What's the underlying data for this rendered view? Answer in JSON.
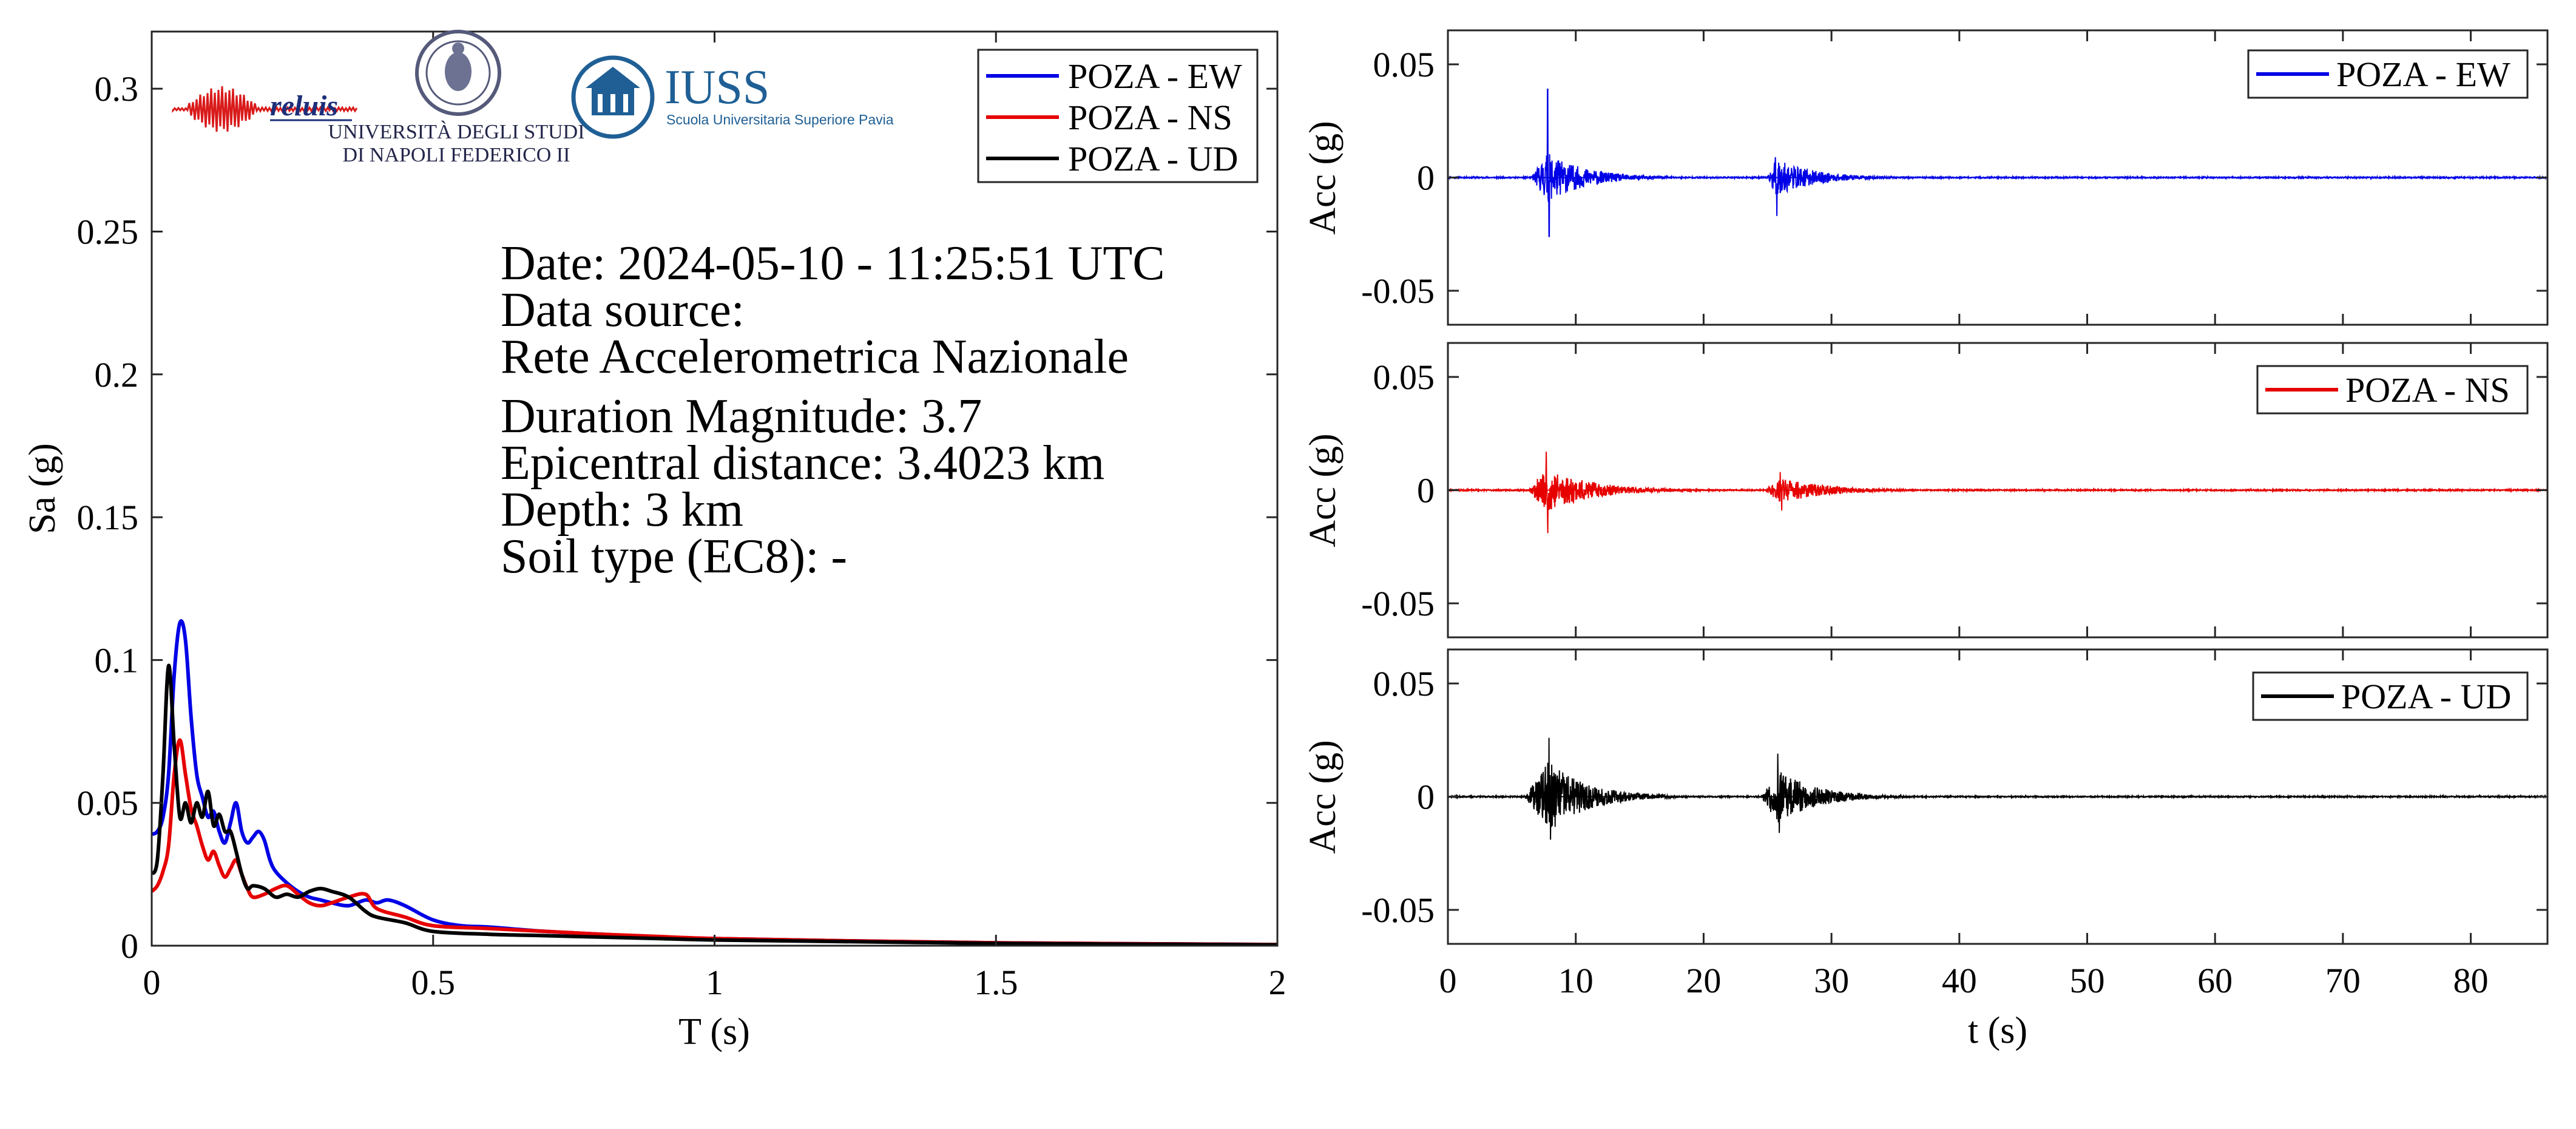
{
  "info": {
    "date": "Date: 2024-05-10 - 11:25:51 UTC",
    "source_label": "Data source:",
    "source_name": "Rete Accelerometrica Nazionale",
    "magnitude": "Duration Magnitude: 3.7",
    "distance": "Epicentral distance: 3.4023 km",
    "depth": "Depth: 3 km",
    "soil": "Soil type (EC8): -"
  },
  "logos": {
    "reluis": "reluis",
    "unina_line1": "UNIVERSITÀ DEGLI STUDI",
    "unina_line2": "DI NAPOLI FEDERICO II",
    "iuss_title": "IUSS",
    "iuss_subtitle": "Scuola Universitaria Superiore Pavia"
  },
  "colors": {
    "ew": "#0000e6",
    "ns": "#e60000",
    "ud": "#000000"
  },
  "chart_data": [
    {
      "type": "line",
      "xlabel": "T (s)",
      "ylabel": "Sa (g)",
      "xlim": [
        0,
        2
      ],
      "ylim": [
        0,
        0.32
      ],
      "xticks": [
        0,
        0.5,
        1,
        1.5,
        2
      ],
      "xtick_labels": [
        "0",
        "0.5",
        "1",
        "1.5",
        "2"
      ],
      "yticks": [
        0,
        0.05,
        0.1,
        0.15,
        0.2,
        0.25,
        0.3
      ],
      "ytick_labels": [
        "0",
        "0.05",
        "0.1",
        "0.15",
        "0.2",
        "0.25",
        "0.3"
      ],
      "grid": false,
      "legend": "top-right",
      "series": [
        {
          "name": "POZA - EW",
          "color": "#0000e6",
          "x": [
            0,
            0.01,
            0.02,
            0.03,
            0.04,
            0.05,
            0.06,
            0.07,
            0.08,
            0.09,
            0.1,
            0.11,
            0.12,
            0.13,
            0.14,
            0.15,
            0.16,
            0.17,
            0.18,
            0.19,
            0.2,
            0.21,
            0.22,
            0.24,
            0.26,
            0.28,
            0.3,
            0.32,
            0.35,
            0.38,
            0.4,
            0.42,
            0.45,
            0.5,
            0.55,
            0.6,
            0.7,
            0.8,
            0.9,
            1.0,
            1.2,
            1.5,
            2.0
          ],
          "y": [
            0.039,
            0.04,
            0.045,
            0.06,
            0.095,
            0.113,
            0.107,
            0.08,
            0.06,
            0.052,
            0.045,
            0.047,
            0.04,
            0.036,
            0.043,
            0.05,
            0.04,
            0.036,
            0.038,
            0.04,
            0.037,
            0.03,
            0.026,
            0.022,
            0.019,
            0.017,
            0.016,
            0.015,
            0.014,
            0.016,
            0.015,
            0.016,
            0.014,
            0.009,
            0.007,
            0.0065,
            0.005,
            0.004,
            0.003,
            0.0025,
            0.0018,
            0.001,
            0.0004
          ]
        },
        {
          "name": "POZA - NS",
          "color": "#e60000",
          "x": [
            0,
            0.01,
            0.02,
            0.03,
            0.04,
            0.05,
            0.06,
            0.07,
            0.08,
            0.09,
            0.1,
            0.11,
            0.12,
            0.13,
            0.14,
            0.15,
            0.16,
            0.17,
            0.18,
            0.2,
            0.22,
            0.24,
            0.26,
            0.28,
            0.3,
            0.32,
            0.35,
            0.38,
            0.4,
            0.45,
            0.5,
            0.6,
            0.7,
            0.8,
            0.9,
            1.0,
            1.2,
            1.5,
            2.0
          ],
          "y": [
            0.019,
            0.021,
            0.026,
            0.035,
            0.06,
            0.072,
            0.06,
            0.048,
            0.042,
            0.035,
            0.03,
            0.033,
            0.028,
            0.024,
            0.027,
            0.03,
            0.025,
            0.02,
            0.017,
            0.018,
            0.02,
            0.021,
            0.018,
            0.015,
            0.014,
            0.015,
            0.017,
            0.018,
            0.013,
            0.01,
            0.007,
            0.006,
            0.005,
            0.004,
            0.0032,
            0.0025,
            0.0018,
            0.001,
            0.0004
          ]
        },
        {
          "name": "POZA - UD",
          "color": "#000000",
          "x": [
            0,
            0.01,
            0.02,
            0.03,
            0.04,
            0.05,
            0.06,
            0.07,
            0.08,
            0.09,
            0.1,
            0.11,
            0.12,
            0.13,
            0.14,
            0.15,
            0.16,
            0.17,
            0.18,
            0.2,
            0.22,
            0.24,
            0.26,
            0.28,
            0.3,
            0.32,
            0.35,
            0.38,
            0.4,
            0.45,
            0.5,
            0.6,
            0.7,
            0.8,
            0.9,
            1.0,
            1.2,
            1.5,
            2.0
          ],
          "y": [
            0.025,
            0.03,
            0.06,
            0.098,
            0.07,
            0.045,
            0.05,
            0.043,
            0.05,
            0.045,
            0.054,
            0.042,
            0.046,
            0.04,
            0.04,
            0.033,
            0.025,
            0.02,
            0.021,
            0.02,
            0.017,
            0.018,
            0.017,
            0.019,
            0.02,
            0.019,
            0.017,
            0.012,
            0.01,
            0.008,
            0.005,
            0.004,
            0.0035,
            0.003,
            0.0025,
            0.002,
            0.0015,
            0.0008,
            0.0003
          ]
        }
      ]
    },
    {
      "type": "line",
      "xlabel": "",
      "ylabel": "Acc (g)",
      "xlim": [
        0,
        86
      ],
      "ylim": [
        -0.065,
        0.065
      ],
      "yticks": [
        -0.05,
        0,
        0.05
      ],
      "ytick_labels": [
        "-0.05",
        "0",
        "0.05"
      ],
      "legend": "top-right",
      "series": [
        {
          "name": "POZA - EW",
          "color": "#0000e6",
          "events": [
            {
              "t0": 6.5,
              "peak_t": 7.8,
              "peak_pos": 0.039,
              "peak_neg": -0.026,
              "env": 0.011,
              "decay": 3.0,
              "dur": 12
            },
            {
              "t0": 25.0,
              "peak_t": 25.6,
              "peak_pos": 0.009,
              "peak_neg": -0.017,
              "env": 0.0085,
              "decay": 3.0,
              "dur": 10
            }
          ]
        }
      ]
    },
    {
      "type": "line",
      "xlabel": "",
      "ylabel": "Acc (g)",
      "xlim": [
        0,
        86
      ],
      "ylim": [
        -0.065,
        0.065
      ],
      "yticks": [
        -0.05,
        0,
        0.05
      ],
      "ytick_labels": [
        "-0.05",
        "0",
        "0.05"
      ],
      "legend": "top-right",
      "series": [
        {
          "name": "POZA - NS",
          "color": "#e60000",
          "events": [
            {
              "t0": 6.3,
              "peak_t": 7.7,
              "peak_pos": 0.017,
              "peak_neg": -0.019,
              "env": 0.01,
              "decay": 3.5,
              "dur": 14
            },
            {
              "t0": 24.8,
              "peak_t": 26.0,
              "peak_pos": 0.008,
              "peak_neg": -0.009,
              "env": 0.006,
              "decay": 3.5,
              "dur": 12
            }
          ]
        }
      ]
    },
    {
      "type": "line",
      "xlabel": "t (s)",
      "ylabel": "Acc (g)",
      "xlim": [
        0,
        86
      ],
      "ylim": [
        -0.065,
        0.065
      ],
      "xticks": [
        0,
        10,
        20,
        30,
        40,
        50,
        60,
        70,
        80
      ],
      "xtick_labels": [
        "0",
        "10",
        "20",
        "30",
        "40",
        "50",
        "60",
        "70",
        "80"
      ],
      "yticks": [
        -0.05,
        0,
        0.05
      ],
      "ytick_labels": [
        "-0.05",
        "0",
        "0.05"
      ],
      "legend": "top-right",
      "series": [
        {
          "name": "POZA - UD",
          "color": "#000000",
          "events": [
            {
              "t0": 6.0,
              "peak_t": 7.9,
              "peak_pos": 0.026,
              "peak_neg": -0.019,
              "env": 0.016,
              "decay": 3.0,
              "dur": 12
            },
            {
              "t0": 24.5,
              "peak_t": 25.8,
              "peak_pos": 0.019,
              "peak_neg": -0.016,
              "env": 0.012,
              "decay": 3.0,
              "dur": 12
            }
          ]
        }
      ]
    }
  ]
}
